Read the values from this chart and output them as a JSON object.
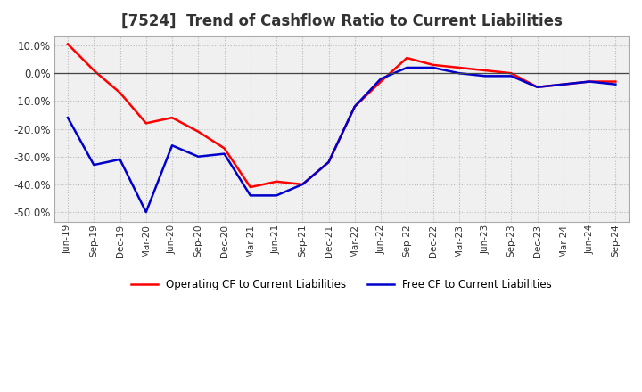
{
  "title": "[7524]  Trend of Cashflow Ratio to Current Liabilities",
  "x_labels": [
    "Jun-19",
    "Sep-19",
    "Dec-19",
    "Mar-20",
    "Jun-20",
    "Sep-20",
    "Dec-20",
    "Mar-21",
    "Jun-21",
    "Sep-21",
    "Dec-21",
    "Mar-22",
    "Jun-22",
    "Sep-22",
    "Dec-22",
    "Mar-23",
    "Jun-23",
    "Sep-23",
    "Dec-23",
    "Mar-24",
    "Jun-24",
    "Sep-24"
  ],
  "operating_cf": [
    0.105,
    0.01,
    -0.07,
    -0.18,
    -0.16,
    -0.21,
    -0.27,
    -0.41,
    -0.39,
    -0.4,
    -0.32,
    -0.12,
    -0.03,
    0.055,
    0.03,
    0.02,
    0.01,
    0.0,
    -0.05,
    -0.04,
    -0.03,
    -0.03
  ],
  "free_cf": [
    -0.16,
    -0.33,
    -0.31,
    -0.5,
    -0.26,
    -0.3,
    -0.29,
    -0.44,
    -0.44,
    -0.4,
    -0.32,
    -0.12,
    -0.02,
    0.02,
    0.02,
    0.0,
    -0.01,
    -0.01,
    -0.05,
    -0.04,
    -0.03,
    -0.04
  ],
  "operating_color": "#ff0000",
  "free_color": "#0000cd",
  "ylim": [
    -0.535,
    0.135
  ],
  "yticks": [
    -0.5,
    -0.4,
    -0.3,
    -0.2,
    -0.1,
    0.0,
    0.1
  ],
  "background_color": "#ffffff",
  "plot_bg_color": "#f0f0f0",
  "grid_color": "#bbbbbb",
  "title_color": "#333333",
  "legend_operating": "Operating CF to Current Liabilities",
  "legend_free": "Free CF to Current Liabilities",
  "title_fontsize": 12
}
